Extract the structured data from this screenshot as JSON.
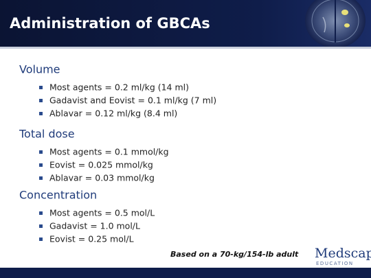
{
  "header": {
    "title": "Administration of GBCAs"
  },
  "sections": [
    {
      "heading": "Volume",
      "items": [
        "Most agents = 0.2 ml/kg (14 ml)",
        "Gadavist and Eovist = 0.1 ml/kg (7 ml)",
        "Ablavar = 0.12 ml/kg (8.4 ml)"
      ]
    },
    {
      "heading": "Total dose",
      "items": [
        "Most agents = 0.1 mmol/kg",
        "Eovist = 0.025 mmol/kg",
        "Ablavar = 0.03 mmol/kg"
      ]
    },
    {
      "heading": "Concentration",
      "items": [
        "Most agents = 0.5 mol/L",
        "Gadavist = 1.0 mol/L",
        "Eovist = 0.25 mol/L"
      ]
    }
  ],
  "footnote": "Based on a 70-kg/154-lb adult",
  "logo": {
    "name": "Medscape",
    "tagline": "EDUCATION"
  }
}
